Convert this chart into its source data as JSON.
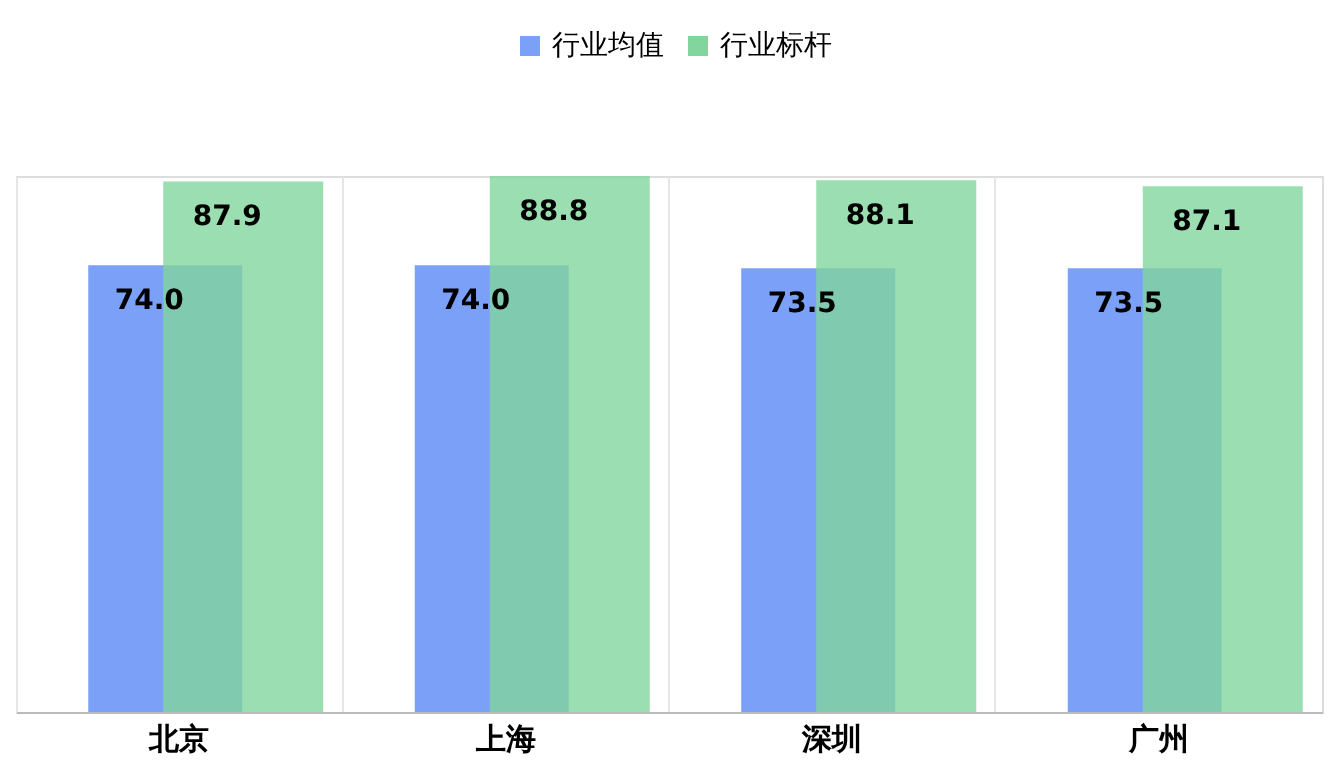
{
  "chart_data": {
    "type": "bar",
    "categories": [
      "北京",
      "上海",
      "深圳",
      "广州"
    ],
    "series": [
      {
        "name": "行业均值",
        "color": "#7ba0f7",
        "values": [
          74.0,
          74.0,
          73.5,
          73.5
        ],
        "value_labels": [
          "74.0",
          "74.0",
          "73.5",
          "73.5"
        ]
      },
      {
        "name": "行业标杆",
        "color": "#82d69d",
        "values": [
          87.9,
          88.8,
          88.1,
          87.1
        ],
        "value_labels": [
          "87.9",
          "88.8",
          "88.1",
          "87.1"
        ]
      }
    ],
    "legend": "top",
    "grid": "x"
  }
}
